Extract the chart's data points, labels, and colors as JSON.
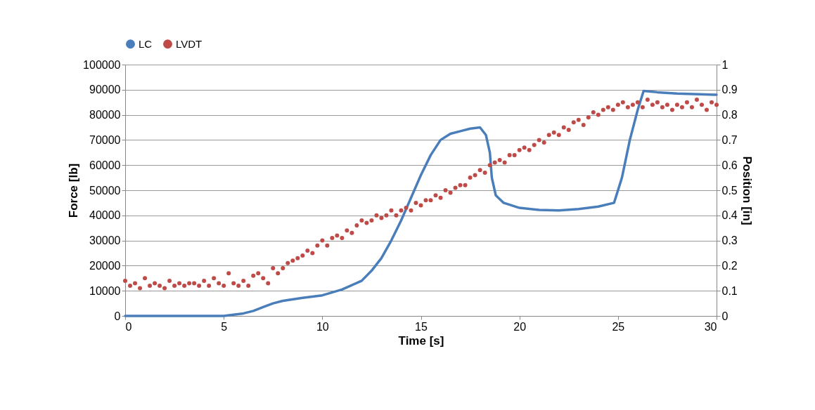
{
  "chart_data": {
    "type": "line",
    "xlabel": "Time [s]",
    "ylabel": "Force [lb]",
    "y2label": "Position [in]",
    "xlim": [
      0,
      30
    ],
    "xticks": [
      0,
      5,
      10,
      15,
      20,
      25,
      30
    ],
    "ylim": [
      0,
      100000
    ],
    "yticks": [
      0,
      10000,
      20000,
      30000,
      40000,
      50000,
      60000,
      70000,
      80000,
      90000,
      100000
    ],
    "y2lim": [
      0,
      1
    ],
    "y2ticks": [
      0,
      0.1,
      0.2,
      0.3,
      0.4,
      0.5,
      0.6,
      0.7,
      0.8,
      0.9,
      1
    ],
    "grid": "y",
    "legend": "top",
    "series": [
      {
        "name": "LC",
        "color": "#4a7ebb",
        "x": [
          0,
          5,
          5.5,
          6,
          6.5,
          7,
          7.5,
          8,
          9,
          10,
          11,
          12,
          12.5,
          13,
          13.5,
          14,
          14.5,
          15,
          15.5,
          16,
          16.5,
          17,
          17.5,
          18,
          18.3,
          18.5,
          18.6,
          18.8,
          19.2,
          20,
          21,
          22,
          23,
          24,
          24.8,
          25.2,
          25.6,
          26,
          26.3,
          27,
          28,
          30
        ],
        "values": [
          0,
          0,
          500,
          1000,
          2000,
          3500,
          5000,
          6000,
          7200,
          8200,
          10500,
          14000,
          18000,
          23000,
          30000,
          38000,
          47000,
          56000,
          64000,
          70000,
          72500,
          73500,
          74500,
          75000,
          72000,
          65000,
          55000,
          48000,
          45000,
          43000,
          42200,
          42000,
          42500,
          43500,
          45000,
          55000,
          70000,
          82000,
          89500,
          89000,
          88500,
          88000
        ]
      },
      {
        "name": "LVDT",
        "type": "scatter",
        "axis": "y2",
        "color": "#be4b48",
        "x": [
          0,
          0.25,
          0.5,
          0.75,
          1,
          1.25,
          1.5,
          1.75,
          2,
          2.25,
          2.5,
          2.75,
          3,
          3.25,
          3.5,
          3.75,
          4,
          4.25,
          4.5,
          4.75,
          5,
          5.25,
          5.5,
          5.75,
          6,
          6.25,
          6.5,
          6.75,
          7,
          7.25,
          7.5,
          7.75,
          8,
          8.25,
          8.5,
          8.75,
          9,
          9.25,
          9.5,
          9.75,
          10,
          10.25,
          10.5,
          10.75,
          11,
          11.25,
          11.5,
          11.75,
          12,
          12.25,
          12.5,
          12.75,
          13,
          13.25,
          13.5,
          13.75,
          14,
          14.25,
          14.5,
          14.75,
          15,
          15.25,
          15.5,
          15.75,
          16,
          16.25,
          16.5,
          16.75,
          17,
          17.25,
          17.5,
          17.75,
          18,
          18.25,
          18.5,
          18.75,
          19,
          19.25,
          19.5,
          19.75,
          20,
          20.25,
          20.5,
          20.75,
          21,
          21.25,
          21.5,
          21.75,
          22,
          22.25,
          22.5,
          22.75,
          23,
          23.25,
          23.5,
          23.75,
          24,
          24.25,
          24.5,
          24.75,
          25,
          25.25,
          25.5,
          25.75,
          26,
          26.25,
          26.5,
          26.75,
          27,
          27.25,
          27.5,
          27.75,
          28,
          28.25,
          28.5,
          28.75,
          29,
          29.25,
          29.5,
          29.75,
          30
        ],
        "values": [
          0.14,
          0.12,
          0.13,
          0.11,
          0.15,
          0.12,
          0.13,
          0.12,
          0.11,
          0.14,
          0.12,
          0.13,
          0.12,
          0.13,
          0.13,
          0.12,
          0.14,
          0.12,
          0.15,
          0.13,
          0.12,
          0.17,
          0.13,
          0.12,
          0.14,
          0.12,
          0.16,
          0.17,
          0.15,
          0.13,
          0.19,
          0.17,
          0.19,
          0.21,
          0.22,
          0.23,
          0.24,
          0.26,
          0.25,
          0.28,
          0.3,
          0.28,
          0.31,
          0.32,
          0.31,
          0.34,
          0.33,
          0.36,
          0.38,
          0.37,
          0.38,
          0.4,
          0.39,
          0.4,
          0.42,
          0.4,
          0.42,
          0.43,
          0.42,
          0.45,
          0.44,
          0.46,
          0.46,
          0.48,
          0.47,
          0.5,
          0.49,
          0.51,
          0.52,
          0.52,
          0.55,
          0.56,
          0.58,
          0.57,
          0.6,
          0.61,
          0.62,
          0.61,
          0.64,
          0.64,
          0.66,
          0.67,
          0.66,
          0.68,
          0.7,
          0.69,
          0.72,
          0.73,
          0.72,
          0.75,
          0.74,
          0.77,
          0.78,
          0.76,
          0.79,
          0.81,
          0.8,
          0.82,
          0.83,
          0.82,
          0.84,
          0.85,
          0.83,
          0.84,
          0.85,
          0.83,
          0.86,
          0.84,
          0.85,
          0.83,
          0.84,
          0.82,
          0.84,
          0.83,
          0.85,
          0.83,
          0.86,
          0.84,
          0.82,
          0.85,
          0.84
        ]
      }
    ]
  }
}
